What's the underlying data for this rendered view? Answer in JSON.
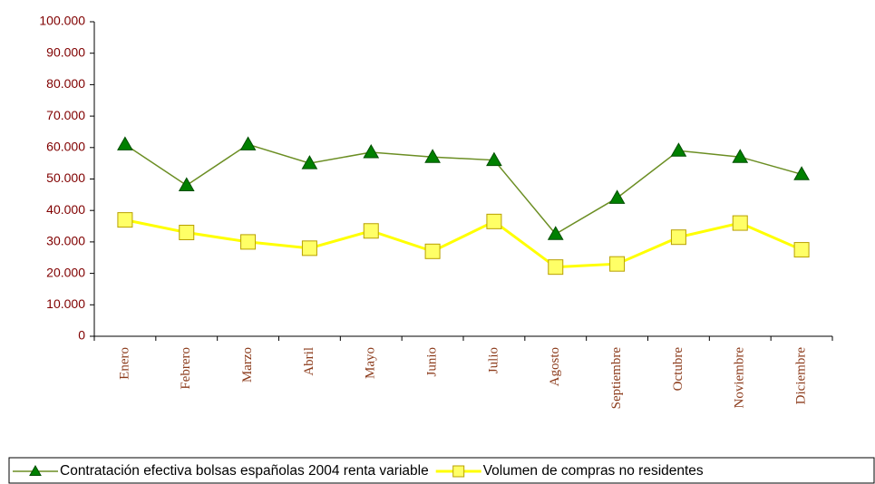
{
  "chart_data": {
    "type": "line",
    "categories": [
      "Enero",
      "Febrero",
      "Marzo",
      "Abril",
      "Mayo",
      "Junio",
      "Julio",
      "Agosto",
      "Septiembre",
      "Octubre",
      "Noviembre",
      "Diciembre"
    ],
    "series": [
      {
        "name": "Contratación efectiva bolsas españolas 2004 renta variable",
        "color": "#6b8e23",
        "marker": "triangle",
        "marker_color": "#008000",
        "values": [
          61000,
          48000,
          61000,
          55000,
          58500,
          57000,
          56000,
          32500,
          44000,
          59000,
          57000,
          51500
        ]
      },
      {
        "name": "Volumen de compras no residentes",
        "color": "#ffff00",
        "marker": "square",
        "marker_color": "#ffff66",
        "values": [
          37000,
          33000,
          30000,
          28000,
          33500,
          27000,
          36500,
          22000,
          23000,
          31500,
          36000,
          27500
        ]
      }
    ],
    "ylim": [
      0,
      100000
    ],
    "yticks": [
      0,
      {
        "value": 10000,
        "label": "10.000"
      },
      {
        "value": 20000,
        "label": "20.000"
      },
      {
        "value": 30000,
        "label": "30.000"
      },
      {
        "value": 40000,
        "label": "40.000"
      },
      {
        "value": 50000,
        "label": "50.000"
      },
      {
        "value": 60000,
        "label": "60.000"
      },
      {
        "value": 70000,
        "label": "70.000"
      },
      {
        "value": 80000,
        "label": "80.000"
      },
      {
        "value": 90000,
        "label": "90.000"
      },
      {
        "value": 100000,
        "label": "100.000"
      }
    ],
    "legend": "bottom"
  }
}
